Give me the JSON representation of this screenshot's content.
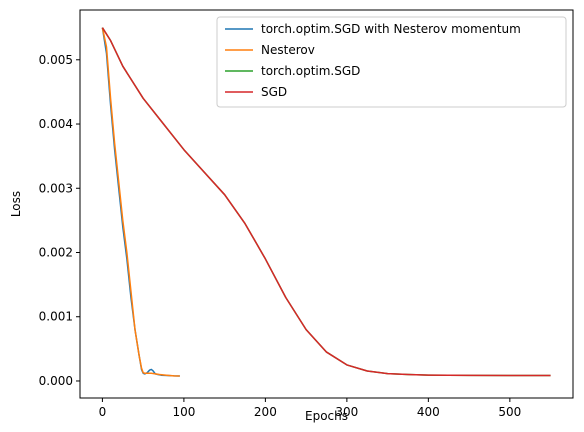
{
  "chart_data": {
    "type": "line",
    "title": "",
    "xlabel": "Epochs",
    "ylabel": "Loss",
    "xlim": [
      -27.5,
      577.5
    ],
    "ylim": [
      -0.000265,
      0.005775
    ],
    "xticks": [
      0,
      100,
      200,
      300,
      400,
      500
    ],
    "xtick_labels": [
      "0",
      "100",
      "200",
      "300",
      "400",
      "500"
    ],
    "yticks": [
      0.0,
      0.001,
      0.002,
      0.003,
      0.004,
      0.005
    ],
    "ytick_labels": [
      "0.000",
      "0.001",
      "0.002",
      "0.003",
      "0.004",
      "0.005"
    ],
    "grid": false,
    "legend_position": "upper right",
    "series": [
      {
        "name": "torch.optim.SGD with Nesterov momentum",
        "color": "#1f77b4",
        "x": [
          0,
          5,
          10,
          15,
          20,
          25,
          30,
          35,
          40,
          45,
          48,
          50,
          52,
          55,
          58,
          60,
          62,
          65,
          68,
          72,
          80,
          88,
          95
        ],
        "y": [
          0.0055,
          0.0051,
          0.0043,
          0.0036,
          0.003,
          0.0024,
          0.0019,
          0.0013,
          0.0008,
          0.0004,
          0.00018,
          0.00012,
          0.00011,
          0.00013,
          0.00017,
          0.00018,
          0.00016,
          0.00011,
          0.0001,
          9e-05,
          8.5e-05,
          8e-05,
          7.8e-05
        ]
      },
      {
        "name": "Nesterov",
        "color": "#ff7f0e",
        "x": [
          0,
          5,
          10,
          15,
          20,
          25,
          30,
          35,
          40,
          45,
          48,
          50,
          52,
          55,
          60,
          65,
          70,
          80,
          88,
          95
        ],
        "y": [
          0.0055,
          0.0052,
          0.0044,
          0.0037,
          0.0031,
          0.0025,
          0.002,
          0.0014,
          0.0008,
          0.0004,
          0.0002,
          0.00013,
          0.00012,
          0.00012,
          0.00012,
          0.00011,
          0.0001,
          8.8e-05,
          8e-05,
          7.8e-05
        ]
      },
      {
        "name": "torch.optim.SGD",
        "color": "#2ca02c",
        "x": [
          0,
          10,
          25,
          50,
          75,
          100,
          125,
          150,
          175,
          200,
          225,
          250,
          275,
          300,
          325,
          350,
          375,
          400,
          450,
          500,
          550
        ],
        "y": [
          0.0055,
          0.0053,
          0.0049,
          0.0044,
          0.004,
          0.0036,
          0.00325,
          0.0029,
          0.00245,
          0.0019,
          0.0013,
          0.0008,
          0.00045,
          0.00025,
          0.000155,
          0.000115,
          0.0001,
          9.2e-05,
          8.8e-05,
          8.6e-05,
          8.5e-05
        ]
      },
      {
        "name": "SGD",
        "color": "#d62728",
        "x": [
          0,
          10,
          25,
          50,
          75,
          100,
          125,
          150,
          175,
          200,
          225,
          250,
          275,
          300,
          325,
          350,
          375,
          400,
          450,
          500,
          550
        ],
        "y": [
          0.0055,
          0.0053,
          0.0049,
          0.0044,
          0.004,
          0.0036,
          0.00325,
          0.0029,
          0.00245,
          0.0019,
          0.0013,
          0.0008,
          0.00045,
          0.00025,
          0.000155,
          0.000115,
          0.0001,
          9.2e-05,
          8.8e-05,
          8.6e-05,
          8.5e-05
        ]
      }
    ]
  }
}
